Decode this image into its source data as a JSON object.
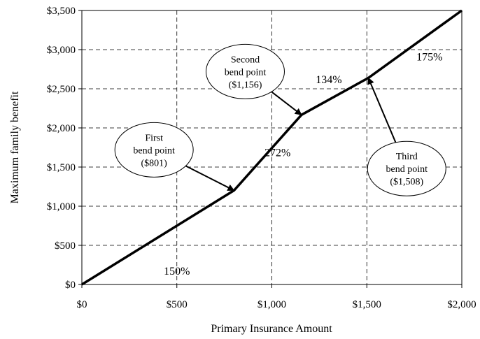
{
  "chart_data": {
    "type": "line",
    "xlabel": "Primary Insurance Amount",
    "ylabel": "Maximum family benefit",
    "xlim": [
      0,
      2000
    ],
    "ylim": [
      0,
      3500
    ],
    "x_ticks": [
      0,
      500,
      1000,
      1500,
      2000
    ],
    "y_ticks": [
      0,
      500,
      1000,
      1500,
      2000,
      2500,
      3000,
      3500
    ],
    "x_tick_labels": [
      "$0",
      "$500",
      "$1,000",
      "$1,500",
      "$2,000"
    ],
    "y_tick_labels": [
      "$0",
      "$500",
      "$1,000",
      "$1,500",
      "$2,000",
      "$2,500",
      "$3,000",
      "$3,500"
    ],
    "grid": true,
    "series": [
      {
        "x": [
          0,
          801,
          1156,
          1508,
          2000
        ],
        "y": [
          0,
          1201.5,
          2167.1,
          2638.8,
          3500
        ]
      }
    ],
    "segment_labels": [
      {
        "text": "150%",
        "x": 500,
        "y": 125
      },
      {
        "text": "272%",
        "x": 1030,
        "y": 1640
      },
      {
        "text": "134%",
        "x": 1300,
        "y": 2570
      },
      {
        "text": "175%",
        "x": 1830,
        "y": 2860
      }
    ],
    "annotations": [
      {
        "lines": [
          "First",
          "bend point",
          "($801)"
        ],
        "center": [
          380,
          1720
        ],
        "arrow_to": [
          801,
          1201.5
        ]
      },
      {
        "lines": [
          "Second",
          "bend point",
          "($1,156)"
        ],
        "center": [
          860,
          2720
        ],
        "arrow_to": [
          1156,
          2167.1
        ]
      },
      {
        "lines": [
          "Third",
          "bend point",
          "($1,508)"
        ],
        "center": [
          1710,
          1480
        ],
        "arrow_to": [
          1508,
          2638.8
        ]
      }
    ]
  }
}
